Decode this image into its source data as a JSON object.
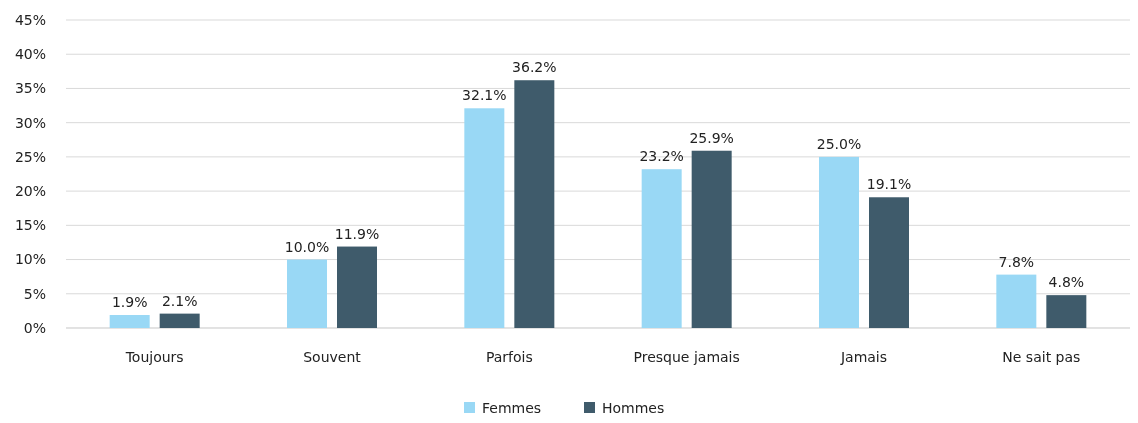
{
  "chart_data": {
    "type": "bar",
    "categories": [
      "Toujours",
      "Souvent",
      "Parfois",
      "Presque jamais",
      "Jamais",
      "Ne sait pas"
    ],
    "series": [
      {
        "name": "Femmes",
        "color": "#99d8f5",
        "values": [
          1.9,
          10.0,
          32.1,
          23.2,
          25.0,
          7.8
        ],
        "value_labels": [
          "1.9%",
          "10.0%",
          "32.1%",
          "23.2%",
          "25.0%",
          "7.8%"
        ]
      },
      {
        "name": "Hommes",
        "color": "#3f5b6b",
        "values": [
          2.1,
          11.9,
          36.2,
          25.9,
          19.1,
          4.8
        ],
        "value_labels": [
          "2.1%",
          "11.9%",
          "36.2%",
          "25.9%",
          "19.1%",
          "4.8%"
        ]
      }
    ],
    "ylim": [
      0,
      45
    ],
    "yticks": [
      {
        "value": 0,
        "label": "0%"
      },
      {
        "value": 5,
        "label": "5%"
      },
      {
        "value": 10,
        "label": "10%"
      },
      {
        "value": 15,
        "label": "15%"
      },
      {
        "value": 20,
        "label": "20%"
      },
      {
        "value": 25,
        "label": "25%"
      },
      {
        "value": 30,
        "label": "30%"
      },
      {
        "value": 35,
        "label": "35%"
      },
      {
        "value": 40,
        "label": "40%"
      },
      {
        "value": 45,
        "label": "45%"
      }
    ],
    "grid": "y",
    "legend": "bottom"
  }
}
